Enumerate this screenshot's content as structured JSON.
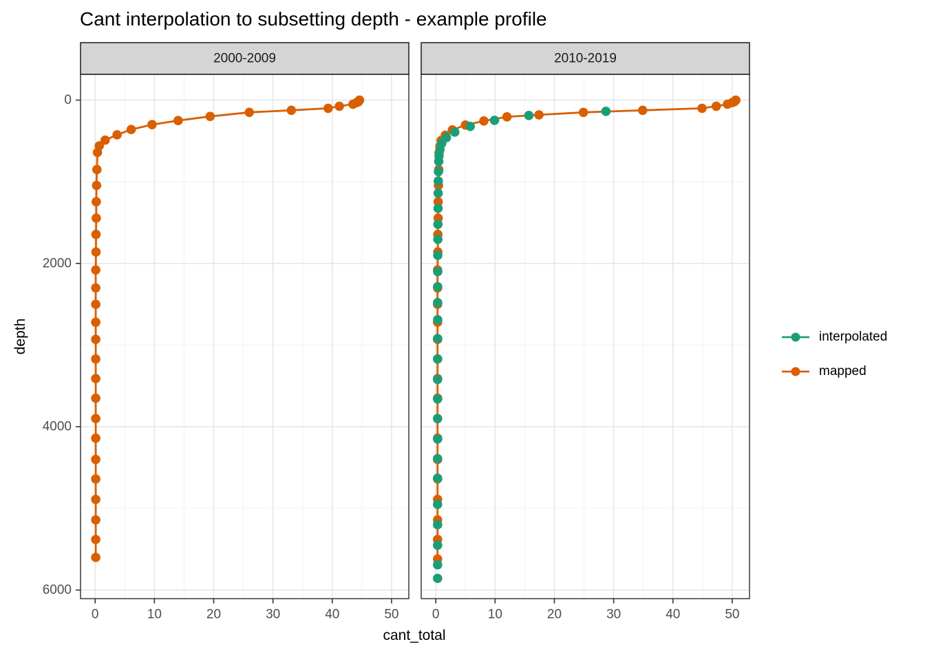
{
  "title": "Cant interpolation to subsetting depth - example profile",
  "legend": {
    "position": "right",
    "items": [
      {
        "label": "interpolated",
        "color": "#1B9E77"
      },
      {
        "label": "mapped",
        "color": "#D95F02"
      }
    ]
  },
  "style": {
    "outer_bg": "#FFFFFF",
    "panel_bg": "#FFFFFF",
    "grid_major": "#E3E3E3",
    "grid_minor": "#F0F0F0",
    "strip_fill": "#D5D5D5",
    "strip_border": "#1A1A1A",
    "panel_border": "#2B2B2B",
    "tick_color": "#333333",
    "tick_label_color": "#4D4D4D",
    "text_color": "#000000"
  },
  "chart_data": {
    "type": "line",
    "title": "Cant interpolation to subsetting depth - example profile",
    "xlabel": "cant_total",
    "ylabel": "depth",
    "x_ticks": [
      0,
      10,
      20,
      30,
      40,
      50
    ],
    "x_minor_ticks": [
      5,
      15,
      25,
      35,
      45
    ],
    "y_ticks": [
      0,
      2000,
      4000,
      6000
    ],
    "y_minor_ticks": [
      1000,
      3000,
      5000
    ],
    "x_domain": [
      -2.46,
      52.91
    ],
    "y_domain": [
      -316,
      6105
    ],
    "y_axis_depth_increases_downward": true,
    "grid": true,
    "legend_position": "right",
    "series_styles": {
      "mapped": {
        "color": "#D95F02",
        "line": true
      },
      "interpolated": {
        "color": "#1B9E77",
        "line": false
      }
    },
    "facets": [
      {
        "label": "2000-2009",
        "series": [
          {
            "name": "mapped",
            "points": [
              [
                44.6,
                0
              ],
              [
                44.5,
                10
              ],
              [
                44.4,
                20
              ],
              [
                44.1,
                30
              ],
              [
                43.5,
                50
              ],
              [
                41.2,
                75
              ],
              [
                39.3,
                100
              ],
              [
                33.1,
                125
              ],
              [
                26.0,
                150
              ],
              [
                19.4,
                200
              ],
              [
                14.0,
                250
              ],
              [
                9.6,
                300
              ],
              [
                6.1,
                360
              ],
              [
                3.7,
                425
              ],
              [
                1.7,
                490
              ],
              [
                0.7,
                560
              ],
              [
                0.4,
                640
              ],
              [
                0.3,
                850
              ],
              [
                0.25,
                1045
              ],
              [
                0.2,
                1245
              ],
              [
                0.2,
                1445
              ],
              [
                0.15,
                1645
              ],
              [
                0.15,
                1860
              ],
              [
                0.1,
                2080
              ],
              [
                0.1,
                2300
              ],
              [
                0.1,
                2500
              ],
              [
                0.1,
                2720
              ],
              [
                0.1,
                2930
              ],
              [
                0.1,
                3170
              ],
              [
                0.1,
                3410
              ],
              [
                0.1,
                3650
              ],
              [
                0.1,
                3900
              ],
              [
                0.1,
                4140
              ],
              [
                0.1,
                4400
              ],
              [
                0.1,
                4640
              ],
              [
                0.1,
                4890
              ],
              [
                0.1,
                5140
              ],
              [
                0.1,
                5380
              ],
              [
                0.1,
                5600
              ]
            ]
          }
        ]
      },
      {
        "label": "2010-2019",
        "series": [
          {
            "name": "mapped",
            "points": [
              [
                50.6,
                0
              ],
              [
                50.5,
                10
              ],
              [
                50.3,
                20
              ],
              [
                50.0,
                30
              ],
              [
                49.2,
                50
              ],
              [
                47.3,
                75
              ],
              [
                44.9,
                100
              ],
              [
                34.9,
                125
              ],
              [
                24.9,
                150
              ],
              [
                17.4,
                180
              ],
              [
                12.0,
                205
              ],
              [
                8.1,
                255
              ],
              [
                5.0,
                305
              ],
              [
                2.8,
                365
              ],
              [
                1.6,
                430
              ],
              [
                0.9,
                495
              ],
              [
                0.7,
                565
              ],
              [
                0.55,
                645
              ],
              [
                0.5,
                850
              ],
              [
                0.45,
                1045
              ],
              [
                0.4,
                1245
              ],
              [
                0.4,
                1445
              ],
              [
                0.35,
                1645
              ],
              [
                0.35,
                1860
              ],
              [
                0.3,
                2080
              ],
              [
                0.3,
                2300
              ],
              [
                0.3,
                2500
              ],
              [
                0.3,
                2720
              ],
              [
                0.3,
                2930
              ],
              [
                0.3,
                3170
              ],
              [
                0.3,
                3410
              ],
              [
                0.3,
                3650
              ],
              [
                0.3,
                3900
              ],
              [
                0.3,
                4140
              ],
              [
                0.3,
                4400
              ],
              [
                0.3,
                4640
              ],
              [
                0.3,
                4890
              ],
              [
                0.3,
                5140
              ],
              [
                0.3,
                5380
              ],
              [
                0.3,
                5620
              ]
            ]
          },
          {
            "name": "interpolated",
            "points": [
              [
                28.7,
                137
              ],
              [
                15.7,
                188
              ],
              [
                9.9,
                248
              ],
              [
                5.8,
                322
              ],
              [
                3.2,
                392
              ],
              [
                1.8,
                458
              ],
              [
                1.0,
                528
              ],
              [
                0.7,
                605
              ],
              [
                0.55,
                685
              ],
              [
                0.5,
                750
              ],
              [
                0.45,
                875
              ],
              [
                0.42,
                990
              ],
              [
                0.4,
                1140
              ],
              [
                0.38,
                1325
              ],
              [
                0.36,
                1520
              ],
              [
                0.35,
                1705
              ],
              [
                0.34,
                1900
              ],
              [
                0.33,
                2100
              ],
              [
                0.32,
                2285
              ],
              [
                0.32,
                2480
              ],
              [
                0.31,
                2690
              ],
              [
                0.31,
                2920
              ],
              [
                0.3,
                3170
              ],
              [
                0.3,
                3420
              ],
              [
                0.3,
                3660
              ],
              [
                0.3,
                3900
              ],
              [
                0.3,
                4150
              ],
              [
                0.3,
                4390
              ],
              [
                0.3,
                4630
              ],
              [
                0.3,
                4950
              ],
              [
                0.3,
                5200
              ],
              [
                0.3,
                5450
              ],
              [
                0.3,
                5690
              ],
              [
                0.3,
                5856
              ]
            ]
          }
        ]
      }
    ]
  }
}
